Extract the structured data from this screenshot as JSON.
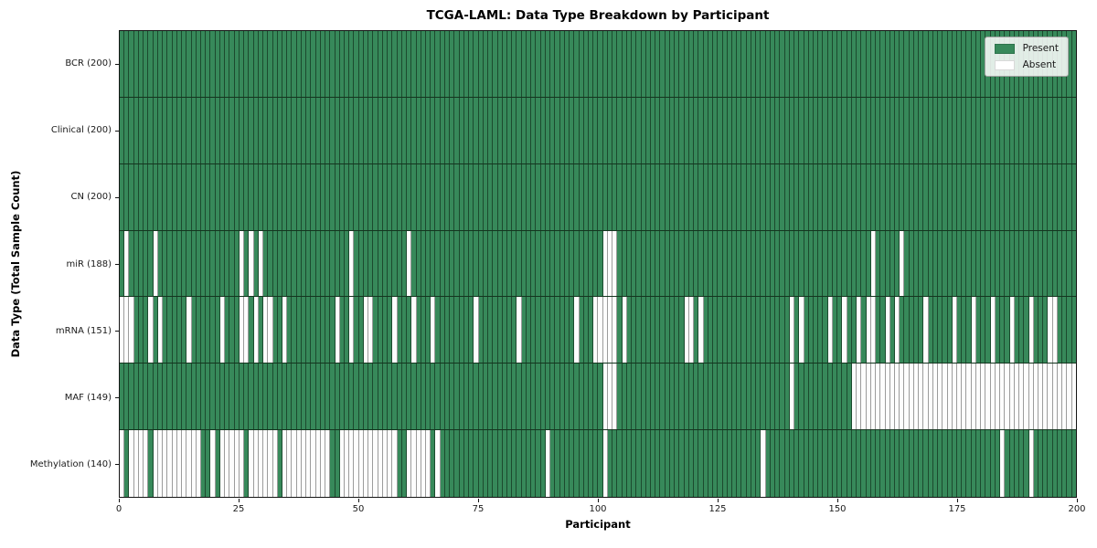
{
  "chart_data": {
    "type": "heatmap",
    "title": "TCGA-LAML: Data Type Breakdown by Participant",
    "xlabel": "Participant",
    "ylabel": "Data Type (Total Sample Count)",
    "x_range": [
      0,
      200
    ],
    "x_ticks": [
      0,
      25,
      50,
      75,
      100,
      125,
      150,
      175,
      200
    ],
    "n_participants": 200,
    "grid": "cell borders on, value-coded present/absent",
    "legend": {
      "position": "upper right",
      "items": [
        {
          "label": "Present",
          "color": "#37895A"
        },
        {
          "label": "Absent",
          "color": "#FFFFFF"
        }
      ]
    },
    "rows": [
      {
        "label": "BCR (200)",
        "data_type": "BCR",
        "present_count": 200,
        "absent_participants": []
      },
      {
        "label": "Clinical (200)",
        "data_type": "Clinical",
        "present_count": 200,
        "absent_participants": []
      },
      {
        "label": "CN (200)",
        "data_type": "CN",
        "present_count": 200,
        "absent_participants": []
      },
      {
        "label": "miR (188)",
        "data_type": "miR",
        "present_count": 188,
        "absent_participants": [
          1,
          7,
          25,
          27,
          29,
          48,
          60,
          101,
          102,
          103,
          157,
          163
        ]
      },
      {
        "label": "mRNA (151)",
        "data_type": "mRNA",
        "present_count": 151,
        "absent_participants": [
          0,
          1,
          2,
          6,
          8,
          14,
          21,
          25,
          26,
          28,
          30,
          31,
          34,
          45,
          48,
          51,
          52,
          57,
          61,
          65,
          74,
          83,
          95,
          99,
          100,
          101,
          102,
          103,
          105,
          118,
          119,
          121,
          140,
          142,
          148,
          151,
          154,
          156,
          157,
          160,
          162,
          168,
          174,
          178,
          182,
          186,
          190,
          194,
          195
        ]
      },
      {
        "label": "MAF (149)",
        "data_type": "MAF",
        "present_count": 149,
        "absent_participants": [
          101,
          102,
          103,
          140,
          153,
          154,
          155,
          156,
          157,
          158,
          159,
          160,
          161,
          162,
          163,
          164,
          165,
          166,
          167,
          168,
          169,
          170,
          171,
          172,
          173,
          174,
          175,
          176,
          177,
          178,
          179,
          180,
          181,
          182,
          183,
          184,
          185,
          186,
          187,
          188,
          189,
          190,
          191,
          192,
          193,
          194,
          195,
          196,
          197,
          198,
          199
        ]
      },
      {
        "label": "Methylation (140)",
        "data_type": "Methylation",
        "present_count": 140,
        "absent_participants": [
          0,
          2,
          3,
          4,
          5,
          7,
          8,
          9,
          10,
          11,
          12,
          13,
          14,
          15,
          16,
          19,
          21,
          22,
          23,
          24,
          25,
          27,
          28,
          29,
          30,
          31,
          32,
          34,
          35,
          36,
          37,
          38,
          39,
          40,
          41,
          42,
          43,
          46,
          47,
          48,
          49,
          50,
          51,
          52,
          53,
          54,
          55,
          56,
          57,
          60,
          61,
          62,
          63,
          64,
          66,
          89,
          101,
          134,
          184,
          190
        ]
      }
    ]
  },
  "colors": {
    "present": "#37895A",
    "absent": "#FDFDFD",
    "cell_border_present": "#1C4A2E",
    "cell_border_absent": "#9C9C9C",
    "row_divider": "#14351F",
    "axis": "#141414",
    "legend_bg": "rgba(255,255,255,0.85)",
    "legend_border": "#A0A0A0"
  }
}
